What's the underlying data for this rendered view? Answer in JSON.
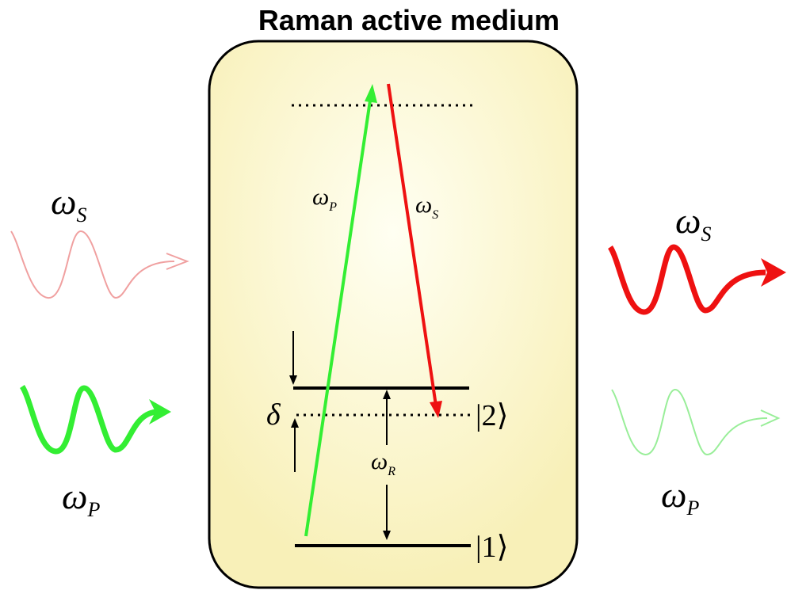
{
  "title": "Raman active medium",
  "colors": {
    "pump": "#33ee33",
    "stokes": "#ee1111",
    "pump_faint": "#99ee99",
    "stokes_faint": "#f0a0a0",
    "medium_fill": "#fbf6c6",
    "medium_glow": "#fffff0"
  },
  "labels": {
    "omega": "ω",
    "sub_S": "S",
    "sub_P": "P",
    "sub_R": "R",
    "delta": "δ",
    "ket_bar": "|",
    "ket_close": "⟩",
    "state_2": "2",
    "state_1": "1"
  }
}
